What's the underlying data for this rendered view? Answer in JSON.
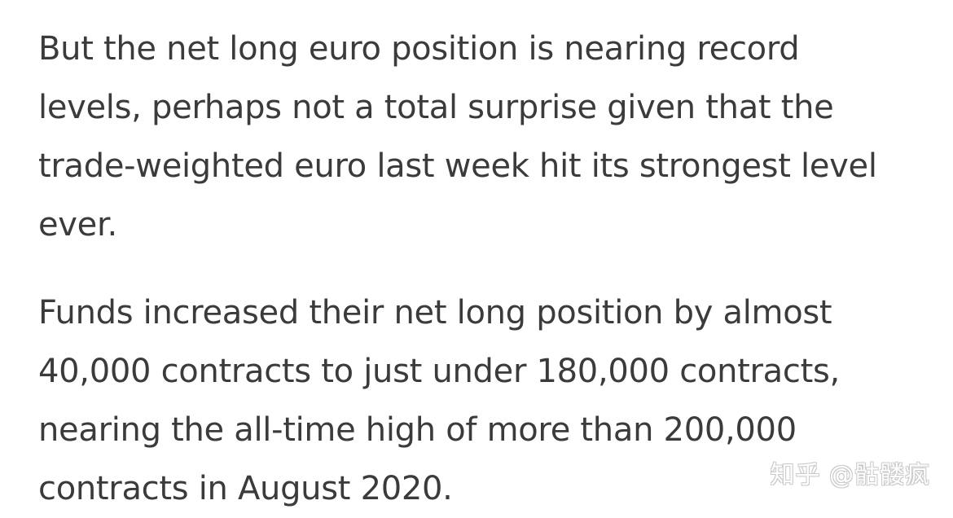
{
  "article": {
    "paragraphs": [
      {
        "lines": [
          "But the net long euro position is nearing record",
          "levels, perhaps not a total surprise given that the",
          "trade-weighted euro last week hit its strongest level",
          "ever."
        ]
      },
      {
        "lines": [
          "Funds increased their net long position by almost",
          "40,000 contracts to just under 180,000 contracts,",
          "nearing the all-time high of more than 200,000",
          "contracts in August 2020."
        ]
      }
    ]
  },
  "watermark": {
    "text": "知乎 @骷髅疯"
  }
}
